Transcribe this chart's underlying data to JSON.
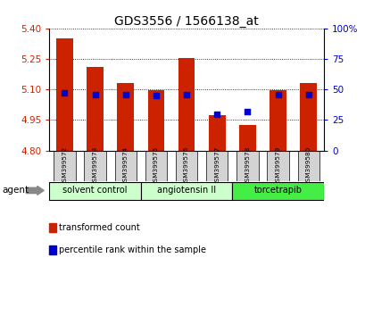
{
  "title": "GDS3556 / 1566138_at",
  "samples": [
    "GSM399572",
    "GSM399573",
    "GSM399574",
    "GSM399575",
    "GSM399576",
    "GSM399577",
    "GSM399578",
    "GSM399579",
    "GSM399580"
  ],
  "bar_bottom": 4.8,
  "bar_tops": [
    5.35,
    5.21,
    5.13,
    5.095,
    5.255,
    4.975,
    4.925,
    5.095,
    5.13
  ],
  "percentile_ranks": [
    47,
    46,
    46,
    45,
    46,
    30,
    32,
    46,
    46
  ],
  "ylim_left": [
    4.8,
    5.4
  ],
  "ylim_right": [
    0,
    100
  ],
  "yticks_left": [
    4.8,
    4.95,
    5.1,
    5.25,
    5.4
  ],
  "yticks_right": [
    0,
    25,
    50,
    75,
    100
  ],
  "bar_color": "#cc2200",
  "dot_color": "#0000cc",
  "groups": [
    {
      "label": "solvent control",
      "start": 0,
      "end": 3,
      "color": "#ccffcc"
    },
    {
      "label": "angiotensin II",
      "start": 3,
      "end": 6,
      "color": "#ccffcc"
    },
    {
      "label": "torcetrapib",
      "start": 6,
      "end": 9,
      "color": "#44ee44"
    }
  ],
  "agent_label": "agent",
  "legend_red": "transformed count",
  "legend_blue": "percentile rank within the sample",
  "bg_color": "#ffffff",
  "tick_label_color_left": "#cc2200",
  "tick_label_color_right": "#0000cc",
  "title_fontsize": 10,
  "bar_width": 0.55,
  "sample_bg_color": "#d3d3d3"
}
